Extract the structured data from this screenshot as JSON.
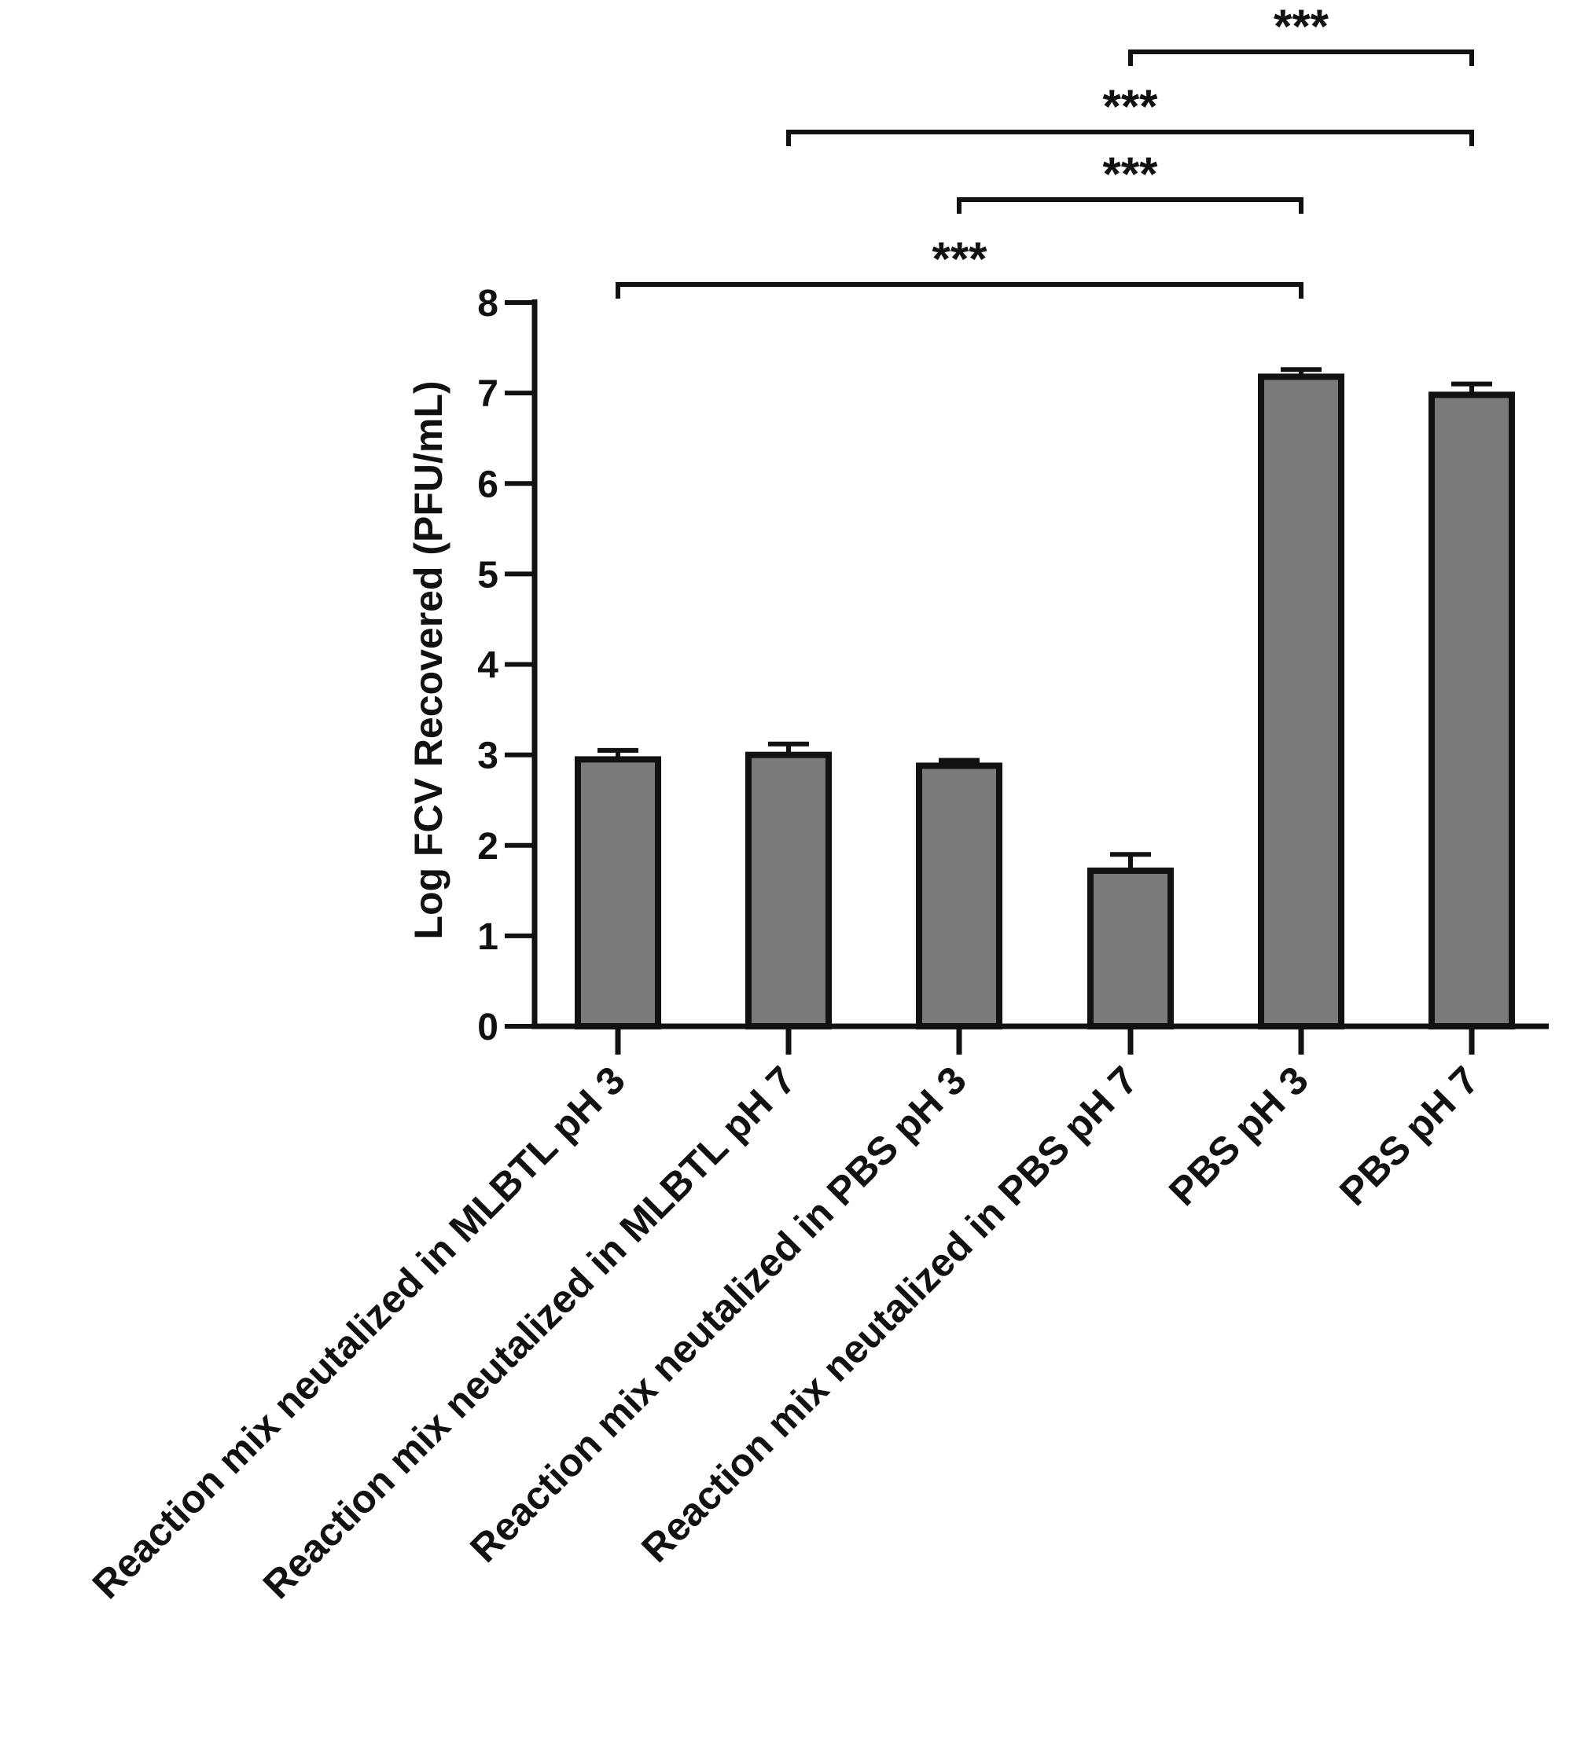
{
  "chart_data": {
    "type": "bar",
    "ylabel": "Log FCV Recovered (PFU/mL)",
    "xlabel": "",
    "ylim": [
      0,
      8
    ],
    "yticks": [
      0,
      1,
      2,
      3,
      4,
      5,
      6,
      7,
      8
    ],
    "categories": [
      "Reaction mix neutalized in MLBTL pH 3",
      "Reaction mix neutalized in MLBTL pH 7",
      "Reaction mix neutalized in PBS pH 3",
      "Reaction mix neutalized in PBS pH 7",
      "PBS pH 3",
      "PBS pH 7"
    ],
    "values": [
      2.95,
      3.0,
      2.88,
      1.72,
      7.18,
      6.98
    ],
    "errors": [
      0.1,
      0.12,
      0.06,
      0.18,
      0.08,
      0.12
    ],
    "bar_color": "#7a7a7a",
    "significance": [
      {
        "from": 0,
        "to": 4,
        "label": "***"
      },
      {
        "from": 2,
        "to": 4,
        "label": "***"
      },
      {
        "from": 1,
        "to": 5,
        "label": "***"
      },
      {
        "from": 3,
        "to": 5,
        "label": "***"
      }
    ]
  }
}
